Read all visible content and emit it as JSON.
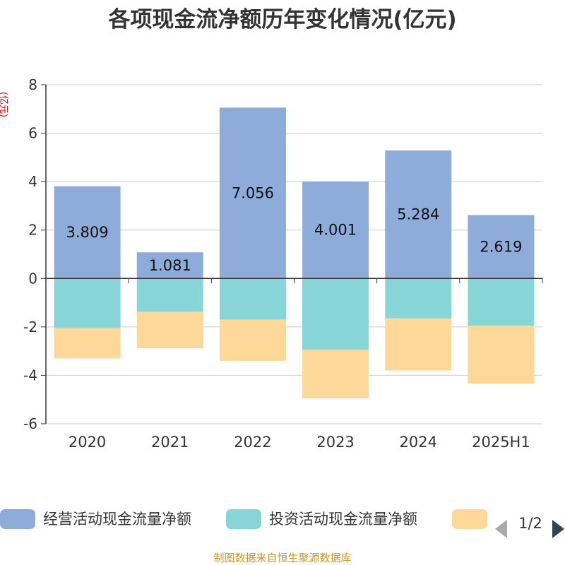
{
  "chart_data": {
    "type": "bar",
    "stacked": true,
    "title": "各项现金流净额历年变化情况(亿元)",
    "unit_label": "(亿元)",
    "categories": [
      "2020",
      "2021",
      "2022",
      "2023",
      "2024",
      "2025H1"
    ],
    "ylim": [
      -6,
      8
    ],
    "yticks": [
      -6,
      -4,
      -2,
      0,
      2,
      4,
      6,
      8
    ],
    "grid": true,
    "legend_position": "bottom",
    "series": [
      {
        "name": "经营活动现金流量净额",
        "color": "#8eacd9",
        "values": [
          3.809,
          1.081,
          7.056,
          4.001,
          5.284,
          2.619
        ]
      },
      {
        "name": "投资活动现金流量净额",
        "color": "#88d5d7",
        "values": [
          -2.05,
          -1.38,
          -1.7,
          -2.95,
          -1.65,
          -1.95
        ]
      },
      {
        "name": "",
        "color": "#fdd899",
        "values": [
          -1.25,
          -1.5,
          -1.7,
          -2.0,
          -2.15,
          -2.4
        ]
      }
    ],
    "data_labels": [
      "3.809",
      "1.081",
      "7.056",
      "4.001",
      "5.284",
      "2.619"
    ]
  },
  "legend": {
    "page_indicator": "1/2"
  },
  "source_text": "制图数据来自恒生聚源数据库"
}
